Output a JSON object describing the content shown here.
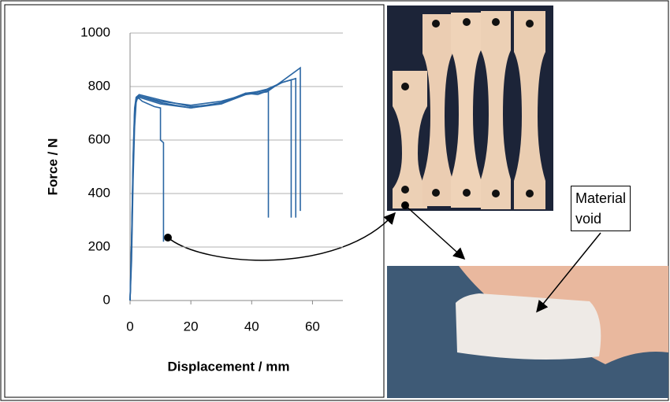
{
  "chart_data": {
    "type": "line",
    "x_label": "Displacement  / mm",
    "y_label": "Force / N",
    "xlim": [
      0,
      70
    ],
    "xticks": [
      0,
      20,
      40,
      60
    ],
    "ylim": [
      0,
      1000
    ],
    "yticks": [
      0,
      200,
      400,
      600,
      800,
      1000
    ],
    "grid": true,
    "series": [
      {
        "color": "#2a66a3",
        "x": [
          0,
          0.5,
          1,
          1.5,
          2,
          2.5,
          4,
          6,
          8,
          10,
          10,
          10.5,
          11,
          11
        ],
        "values": [
          0,
          150,
          450,
          650,
          740,
          760,
          745,
          735,
          725,
          720,
          600,
          595,
          590,
          220
        ]
      },
      {
        "color": "#2a66a3",
        "x": [
          0,
          0.5,
          1,
          1.5,
          2,
          3,
          10,
          15,
          20,
          30,
          38,
          42,
          45.5,
          45.5
        ],
        "values": [
          0,
          200,
          500,
          700,
          750,
          765,
          740,
          730,
          720,
          735,
          775,
          770,
          785,
          310
        ]
      },
      {
        "color": "#2a66a3",
        "x": [
          0,
          0.5,
          1,
          1.5,
          2,
          3,
          10,
          20,
          30,
          38,
          45,
          50,
          53,
          53
        ],
        "values": [
          0,
          200,
          500,
          700,
          750,
          760,
          735,
          720,
          740,
          775,
          785,
          815,
          825,
          310
        ]
      },
      {
        "color": "#2a66a3",
        "x": [
          0,
          0.5,
          1,
          1.5,
          2,
          3,
          10,
          20,
          30,
          38,
          45,
          50,
          54.5,
          54.5
        ],
        "values": [
          0,
          220,
          520,
          710,
          755,
          765,
          745,
          730,
          745,
          770,
          790,
          815,
          830,
          310
        ]
      },
      {
        "color": "#2a66a3",
        "x": [
          0,
          0.5,
          1,
          1.5,
          2,
          3,
          10,
          20,
          30,
          38,
          45,
          50,
          56,
          56
        ],
        "values": [
          0,
          230,
          540,
          720,
          760,
          770,
          750,
          725,
          735,
          770,
          780,
          820,
          870,
          335
        ]
      }
    ]
  },
  "annotation": "Material void"
}
